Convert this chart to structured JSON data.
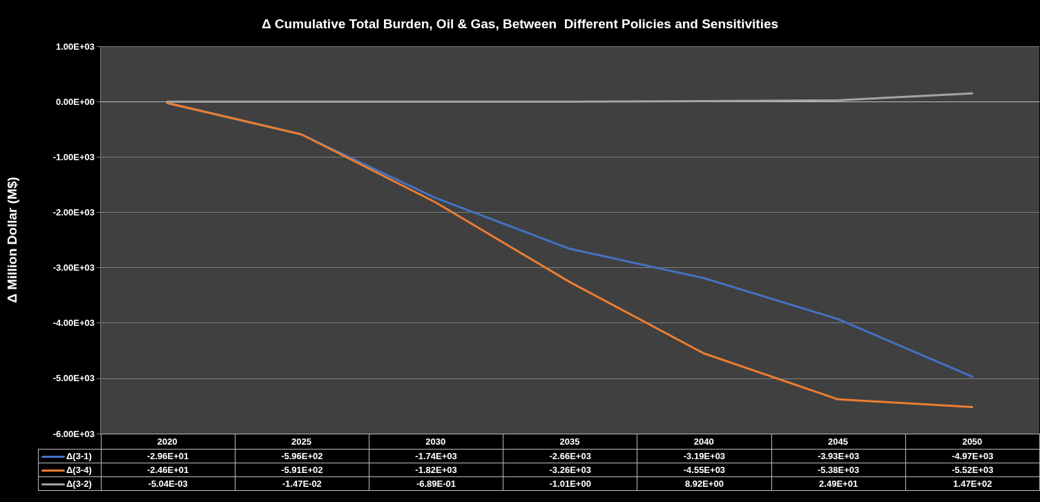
{
  "chart_data": {
    "type": "line",
    "title": "Δ Cumulative Total Burden, Oil & Gas, Between  Different Policies and Sensitivities",
    "ylabel": "Δ Million Dollar (M$)",
    "categories": [
      "2020",
      "2025",
      "2030",
      "2035",
      "2040",
      "2045",
      "2050"
    ],
    "series": [
      {
        "name": "Δ(3-1)",
        "color": "#4472c4",
        "values": [
          -29.6,
          -596,
          -1740,
          -2660,
          -3190,
          -3930,
          -4970
        ],
        "value_labels": [
          "-2.96E+01",
          "-5.96E+02",
          "-1.74E+03",
          "-2.66E+03",
          "-3.19E+03",
          "-3.93E+03",
          "-4.97E+03"
        ]
      },
      {
        "name": "Δ(3-4)",
        "color": "#ed7d31",
        "values": [
          -24.6,
          -591,
          -1820,
          -3260,
          -4550,
          -5380,
          -5520
        ],
        "value_labels": [
          "-2.46E+01",
          "-5.91E+02",
          "-1.82E+03",
          "-3.26E+03",
          "-4.55E+03",
          "-5.38E+03",
          "-5.52E+03"
        ]
      },
      {
        "name": "Δ(3-2)",
        "color": "#a5a5a5",
        "values": [
          -0.00504,
          -0.0147,
          -0.689,
          -1.01,
          8.92,
          24.9,
          147
        ],
        "value_labels": [
          "-5.04E-03",
          "-1.47E-02",
          "-6.89E-01",
          "-1.01E+00",
          "8.92E+00",
          "2.49E+01",
          "1.47E+02"
        ]
      }
    ],
    "ylim": [
      -6000,
      1000
    ],
    "yticks": [
      {
        "value": -6000,
        "label": "-6.00E+03"
      },
      {
        "value": -5000,
        "label": "-5.00E+03"
      },
      {
        "value": -4000,
        "label": "-4.00E+03"
      },
      {
        "value": -3000,
        "label": "-3.00E+03"
      },
      {
        "value": -2000,
        "label": "-2.00E+03"
      },
      {
        "value": -1000,
        "label": "-1.00E+03"
      },
      {
        "value": 0,
        "label": "0.00E+00"
      },
      {
        "value": 1000,
        "label": "1.00E+03"
      }
    ],
    "grid": "y",
    "legend": "bottom",
    "marker": "none",
    "line_style": "solid"
  }
}
